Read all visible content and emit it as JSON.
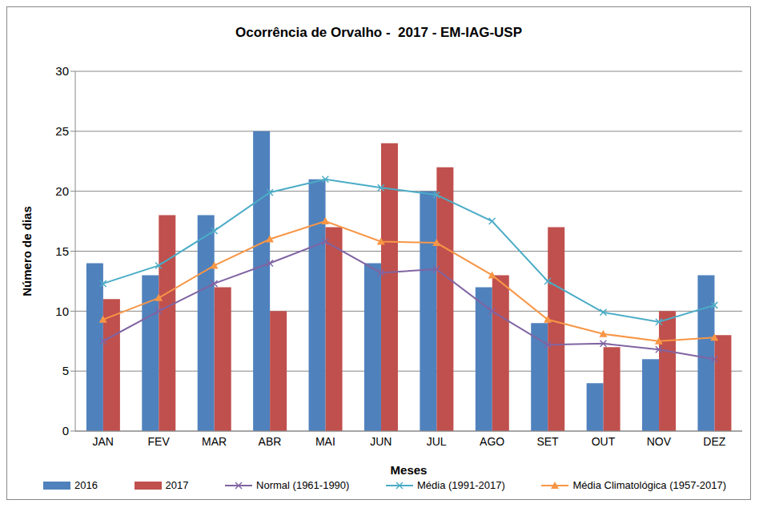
{
  "chart_data": {
    "type": "bar",
    "title": "Ocorrência de Orvalho -  2017 - EM-IAG-USP",
    "x_label": "Meses",
    "y_label": "Número de dias",
    "categories": [
      "JAN",
      "FEV",
      "MAR",
      "ABR",
      "MAI",
      "JUN",
      "JUL",
      "AGO",
      "SET",
      "OUT",
      "NOV",
      "DEZ"
    ],
    "series": [
      {
        "name": "2016",
        "type": "bar",
        "color": "#4f81bd",
        "values": [
          14,
          13,
          18,
          25,
          21,
          14,
          20,
          12,
          9,
          4,
          6,
          13
        ]
      },
      {
        "name": "2017",
        "type": "bar",
        "color": "#c0504d",
        "values": [
          11,
          18,
          12,
          10,
          17,
          24,
          22,
          13,
          17,
          7,
          10,
          8
        ]
      },
      {
        "name": "Normal (1961-1990)",
        "type": "line",
        "color": "#8064a2",
        "marker": "x",
        "values": [
          7.5,
          10,
          12.3,
          14,
          15.8,
          13.2,
          13.5,
          10,
          7.2,
          7.3,
          6.8,
          6
        ]
      },
      {
        "name": "Média (1991-2017)",
        "type": "line",
        "color": "#4bacc6",
        "marker": "x",
        "values": [
          12.3,
          13.8,
          16.7,
          19.9,
          21,
          20.3,
          19.7,
          17.5,
          12.5,
          9.9,
          9.1,
          10.5
        ]
      },
      {
        "name": "Média Climatológica (1957-2017)",
        "type": "line",
        "color": "#f79646",
        "marker": "triangle",
        "values": [
          9.3,
          11.1,
          13.8,
          16,
          17.5,
          15.8,
          15.7,
          13,
          9.3,
          8.1,
          7.5,
          7.8
        ]
      }
    ],
    "ylim": [
      0,
      30
    ],
    "yticks": [
      0,
      5,
      10,
      15,
      20,
      25,
      30
    ],
    "grid": true,
    "legend": "bottom"
  }
}
